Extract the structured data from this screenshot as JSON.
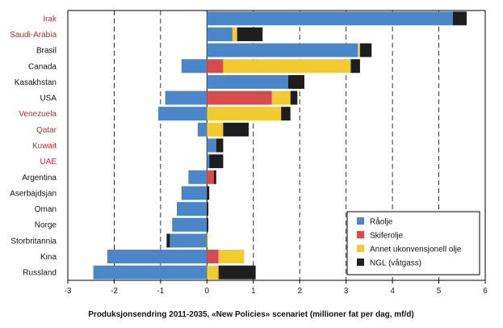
{
  "chart_data": {
    "type": "bar",
    "orientation": "horizontal",
    "stacked": true,
    "xlabel": "Produksjonsendring 2011-2035, «New Policies» scenariet (millioner fat per dag, mf/d)",
    "xlim": [
      -3,
      6
    ],
    "xticks": [
      -3,
      -2,
      -1,
      0,
      1,
      2,
      3,
      4,
      5,
      6
    ],
    "tick_labels": [
      "-3",
      "-2",
      "-1",
      "0",
      "1",
      "2",
      "3",
      "4",
      "5",
      "6"
    ],
    "grid": "vertical dashed",
    "legend_position": "bottom-right",
    "categories": [
      "Irak",
      "Saudi-Arabia",
      "Brasil",
      "Canada",
      "Kasakhstan",
      "USA",
      "Venezuela",
      "Qatar",
      "Kuwait",
      "UAE",
      "Argentina",
      "Aserbajdsjan",
      "Oman",
      "Norge",
      "Storbritannia",
      "Kina",
      "Russland"
    ],
    "highlighted_categories": [
      "Irak",
      "Saudi-Arabia",
      "Venezuela",
      "Qatar",
      "Kuwait",
      "UAE"
    ],
    "series": [
      {
        "name": "Råolje",
        "color": "#4a86c8",
        "values": [
          5.3,
          0.55,
          3.25,
          -0.55,
          1.75,
          -0.9,
          -1.05,
          -0.2,
          0.2,
          0.05,
          -0.4,
          -0.55,
          -0.65,
          -0.75,
          -0.8,
          -2.15,
          -2.45
        ]
      },
      {
        "name": "Skiferolje",
        "color": "#d64b4b",
        "values": [
          0,
          0,
          0,
          0.35,
          0,
          1.4,
          0,
          0,
          0,
          0,
          0.15,
          0,
          0,
          0,
          0,
          0.25,
          0
        ]
      },
      {
        "name": "Annet ukonvensjonell olje",
        "color": "#f2cb30",
        "values": [
          0,
          0.1,
          0.05,
          2.75,
          0,
          0.4,
          1.6,
          0.35,
          0,
          0,
          0,
          0,
          0,
          0,
          0.02,
          0.55,
          0.25
        ]
      },
      {
        "name": "NGL (våtgass)",
        "color": "#1e1e1e",
        "values": [
          0.3,
          0.55,
          0.25,
          0.2,
          0.35,
          0.15,
          0.2,
          0.55,
          0.15,
          0.3,
          0.05,
          0.05,
          0.03,
          0.03,
          -0.07,
          0,
          0.8
        ]
      }
    ]
  }
}
